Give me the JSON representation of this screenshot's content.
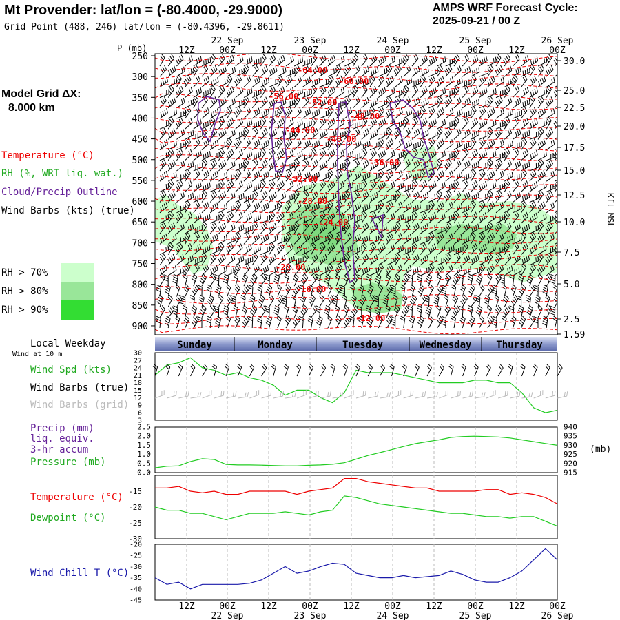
{
  "header": {
    "title": "Mt Provender:  lat/lon = (-80.4000, -29.9000)",
    "subtitle": "Grid Point (488, 246) lat/lon = (-80.4396, -29.8611)",
    "cycle_line1": "AMPS WRF Forecast Cycle:",
    "cycle_line2": "2025-09-21 / 00  Z"
  },
  "sidebar": {
    "model_grid": "Model Grid ΔX:",
    "model_dx": "8.000 km",
    "legend_temp": "Temperature (°C)",
    "legend_rh": "RH (%, WRT liq. wat.)",
    "legend_cloud": "Cloud/Precip Outline",
    "legend_wind": "Wind Barbs (kts) (true)",
    "rh_levels": [
      "RH > 70%",
      "RH > 80%",
      "RH > 90%"
    ],
    "rh_colors": [
      "#ccffcc",
      "#99e699",
      "#33dd33"
    ],
    "local_weekday": "Local Weekday",
    "wind_at": "Wind at 10 m",
    "wind_spd": "Wind Spd (kts)",
    "wind_barbs_true": "Wind Barbs (true)",
    "wind_barbs_grid": "Wind Barbs (grid)",
    "precip": "Precip (mm)",
    "precip_liq": "liq. equiv.",
    "precip_accum": "3-hr accum",
    "pressure": "Pressure (mb)",
    "temperature": "Temperature (°C)",
    "dewpoint": "Dewpoint (°C)",
    "wind_chill": "Wind Chill T (°C)"
  },
  "colors": {
    "temperature": "#ee0000",
    "rh_green": "#22cc22",
    "cloud": "#662299",
    "wind_chill": "#1a1aaa",
    "grid_barbs": "#bbbbbb",
    "day_band": "#7080c0"
  },
  "chart_data": [
    {
      "type": "heatmap",
      "name": "vertical_cross_section",
      "ylabel": "P (mb)",
      "ylabel_right": "Kft MSL",
      "pressure_ticks": [
        "250",
        "300",
        "350",
        "400",
        "450",
        "500",
        "550",
        "600",
        "650",
        "700",
        "750",
        "800",
        "850",
        "900"
      ],
      "height_ticks": [
        "30.0",
        "25.0",
        "22.5",
        "20.0",
        "17.5",
        "15.0",
        "12.5",
        "10.0",
        "7.5",
        "5.0",
        "2.5",
        "1.59"
      ],
      "top_time_ticks": [
        "12Z",
        "00Z",
        "12Z",
        "00Z",
        "12Z",
        "00Z",
        "12Z",
        "00Z",
        "12Z",
        "00Z"
      ],
      "top_date_ticks": [
        "22 Sep",
        "23 Sep",
        "24 Sep",
        "25 Sep",
        "26 Sep"
      ],
      "temperature_labels": [
        "-64.00",
        "-60.00",
        "-56.00",
        "-52.00",
        "-48.00",
        "-44.00",
        "-40.00",
        "-36.00",
        "-32.00",
        "-28.00",
        "-24.00",
        "-20.00",
        "-16.00",
        "-12.00"
      ]
    },
    {
      "type": "line",
      "name": "wind_speed",
      "days": [
        "Sunday",
        "Monday",
        "Tuesday",
        "Wednesday",
        "Thursday"
      ],
      "y_ticks": [
        "30",
        "27",
        "24",
        "21",
        "18",
        "15",
        "12",
        "9",
        "6",
        "3"
      ],
      "ylim": [
        3,
        30
      ],
      "series": [
        {
          "name": "Wind Spd (kts)",
          "values": [
            21,
            25,
            26,
            28,
            24,
            23,
            21,
            22,
            20,
            19,
            17,
            13,
            15,
            15,
            12,
            10,
            14,
            23,
            22,
            22,
            22,
            21,
            20,
            19,
            18,
            18,
            18,
            19,
            19,
            18,
            18,
            14,
            8,
            6,
            7
          ]
        }
      ]
    },
    {
      "type": "line",
      "name": "precip_pressure",
      "y_ticks_left": [
        "2.5",
        "2.0",
        "1.5",
        "1.0",
        "0.5",
        "0.0"
      ],
      "y_ticks_right": [
        "940",
        "935",
        "930",
        "925",
        "920",
        "915"
      ],
      "y_unit_right": "(mb)",
      "ylim_right": [
        915,
        940
      ],
      "series": [
        {
          "name": "Pressure (mb)",
          "values": [
            917.6,
            918.5,
            918.7,
            921.1,
            922.6,
            922.2,
            919.5,
            919.2,
            919.2,
            919.1,
            918.9,
            918.7,
            918.7,
            919.0,
            919.2,
            919.6,
            920.4,
            922.4,
            924.4,
            926.0,
            927.6,
            929.3,
            930.9,
            932.0,
            933.0,
            934.3,
            934.8,
            935.0,
            934.8,
            934.6,
            934.0,
            933.0,
            932.0,
            931.0,
            930.0
          ]
        }
      ]
    },
    {
      "type": "line",
      "name": "temperature_dewpoint",
      "y_ticks": [
        "-15",
        "-20",
        "-25",
        "-30"
      ],
      "ylim": [
        -30,
        -10
      ],
      "series": [
        {
          "name": "Temperature (°C)",
          "values": [
            -14,
            -14,
            -13.5,
            -15,
            -15.5,
            -15,
            -16,
            -16,
            -15,
            -15,
            -15,
            -15,
            -16,
            -15,
            -14.5,
            -14,
            -11,
            -11,
            -12,
            -12.5,
            -13,
            -13.5,
            -14,
            -14,
            -15,
            -15,
            -15,
            -15,
            -14.5,
            -14.5,
            -16,
            -15.5,
            -16,
            -17,
            -19
          ]
        },
        {
          "name": "Dewpoint (°C)",
          "values": [
            -20,
            -21,
            -21,
            -22,
            -22,
            -23,
            -24,
            -23,
            -22,
            -22,
            -22,
            -21.5,
            -22,
            -22.5,
            -21.5,
            -21,
            -16.5,
            -17,
            -18,
            -19,
            -19.5,
            -20,
            -20.5,
            -21,
            -21.5,
            -22,
            -22,
            -22.5,
            -23,
            -23,
            -23.5,
            -23,
            -23,
            -24.5,
            -26
          ]
        }
      ]
    },
    {
      "type": "line",
      "name": "wind_chill",
      "y_ticks": [
        "-20",
        "-25",
        "-30",
        "-35",
        "-40",
        "-45"
      ],
      "ylim": [
        -45,
        -20
      ],
      "series": [
        {
          "name": "Wind Chill T (°C)",
          "values": [
            -35,
            -38,
            -37,
            -40,
            -38,
            -38,
            -38,
            -38,
            -37.5,
            -36,
            -33,
            -30,
            -33,
            -32,
            -30,
            -28.5,
            -29,
            -33,
            -34,
            -35,
            -35,
            -34,
            -35,
            -34.5,
            -34,
            -32,
            -33.5,
            -36,
            -37,
            -37,
            -35,
            -32,
            -27,
            -22,
            -27
          ]
        }
      ]
    }
  ],
  "bottom_axis": {
    "time_ticks": [
      "12Z",
      "00Z",
      "12Z",
      "00Z",
      "12Z",
      "00Z",
      "12Z",
      "00Z",
      "12Z",
      "00Z"
    ],
    "date_ticks": [
      "22 Sep",
      "23 Sep",
      "24 Sep",
      "25 Sep",
      "26 Sep"
    ]
  }
}
